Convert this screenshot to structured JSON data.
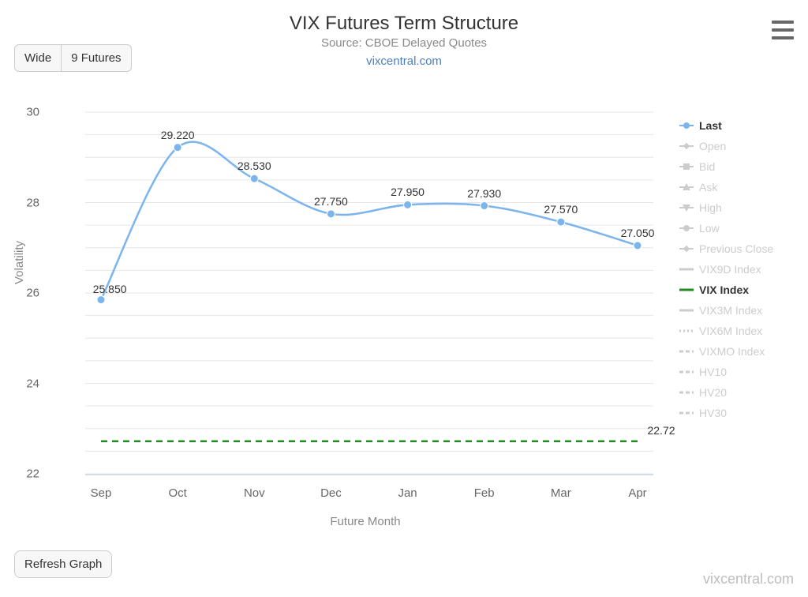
{
  "title": "VIX Futures Term Structure",
  "subtitle": "Source: CBOE Delayed Quotes",
  "source_link": "vixcentral.com",
  "watermark": "vixcentral.com",
  "toolbar": {
    "wide_label": "Wide",
    "futures_label": "9 Futures",
    "refresh_label": "Refresh Graph"
  },
  "chart": {
    "type": "line",
    "xlabel": "Future Month",
    "ylabel": "Volatility",
    "ylim": [
      22,
      30
    ],
    "yticks": [
      22,
      24,
      26,
      28,
      30
    ],
    "categories": [
      "Sep",
      "Oct",
      "Nov",
      "Dec",
      "Jan",
      "Feb",
      "Mar",
      "Apr"
    ],
    "background_color": "#ffffff",
    "grid_color": "#e6e6e6",
    "series_last": {
      "label": "Last",
      "color": "#7cb5ec",
      "marker": "circle",
      "line_width": 2.5,
      "values": [
        25.85,
        29.22,
        28.53,
        27.75,
        27.95,
        27.93,
        27.57,
        27.05
      ],
      "value_labels": [
        "25.850",
        "29.220",
        "28.530",
        "27.750",
        "27.950",
        "27.930",
        "27.570",
        "27.050"
      ]
    },
    "series_vix": {
      "label": "VIX Index",
      "color": "#228B22",
      "dash": "8,6",
      "line_width": 2.5,
      "value": 22.72,
      "value_label": "22.72"
    }
  },
  "legend": [
    {
      "label": "Last",
      "swatch": "circle",
      "color": "#7cb5ec",
      "active": true
    },
    {
      "label": "Open",
      "swatch": "diamond",
      "color": "#cccccc",
      "active": false
    },
    {
      "label": "Bid",
      "swatch": "square",
      "color": "#cccccc",
      "active": false
    },
    {
      "label": "Ask",
      "swatch": "tri-up",
      "color": "#cccccc",
      "active": false
    },
    {
      "label": "High",
      "swatch": "tri-dn",
      "color": "#cccccc",
      "active": false
    },
    {
      "label": "Low",
      "swatch": "circle",
      "color": "#cccccc",
      "active": false
    },
    {
      "label": "Previous Close",
      "swatch": "diamond",
      "color": "#cccccc",
      "active": false
    },
    {
      "label": "VIX9D Index",
      "swatch": "line",
      "color": "#cccccc",
      "active": false
    },
    {
      "label": "VIX Index",
      "swatch": "line",
      "color": "#228B22",
      "active": true
    },
    {
      "label": "VIX3M Index",
      "swatch": "line",
      "color": "#cccccc",
      "active": false
    },
    {
      "label": "VIX6M Index",
      "swatch": "dots",
      "color": "#cccccc",
      "active": false
    },
    {
      "label": "VIXMO Index",
      "swatch": "dash",
      "color": "#cccccc",
      "active": false
    },
    {
      "label": "HV10",
      "swatch": "dash",
      "color": "#cccccc",
      "active": false
    },
    {
      "label": "HV20",
      "swatch": "dash",
      "color": "#cccccc",
      "active": false
    },
    {
      "label": "HV30",
      "swatch": "dash",
      "color": "#cccccc",
      "active": false
    }
  ]
}
